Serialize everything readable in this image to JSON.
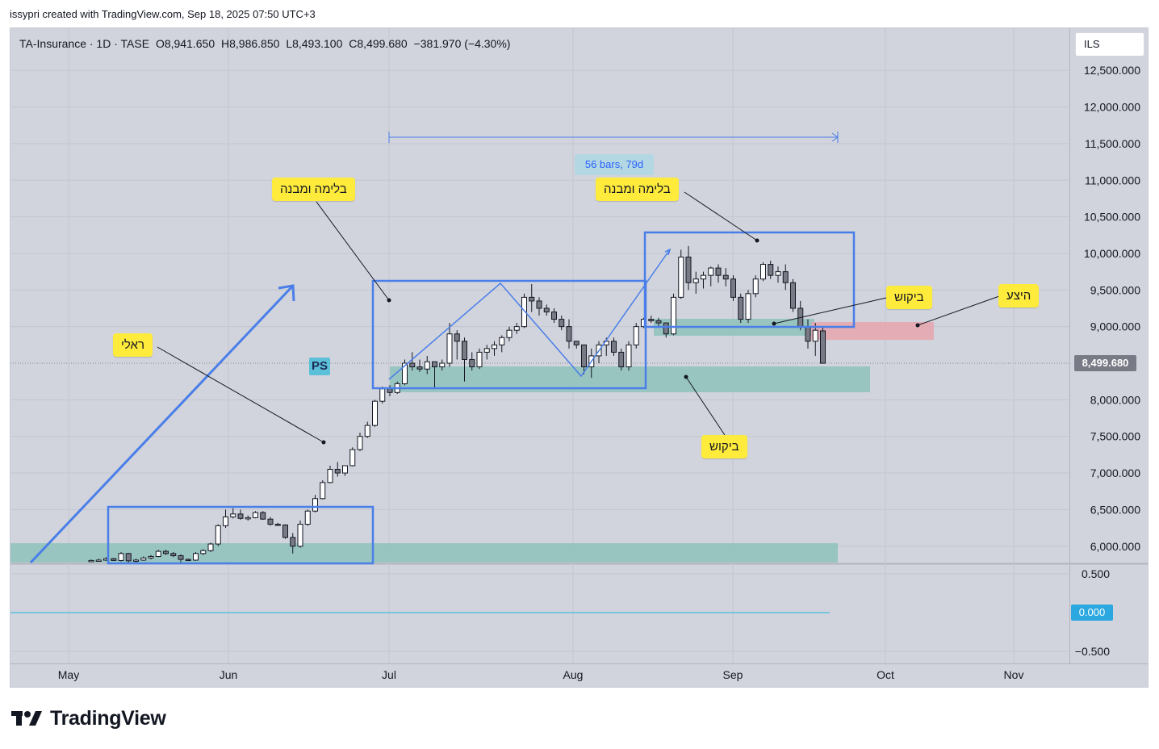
{
  "header": {
    "created_by": "issypri created with TradingView.com, Sep 18, 2025 07:50 UTC+3"
  },
  "legend": {
    "symbol": "TA-Insurance · 1D · TASE",
    "open": "O8,941.650",
    "high": "H8,986.850",
    "low": "L8,493.100",
    "close": "C8,499.680",
    "change": "−381.970 (−4.30%)"
  },
  "currency": "ILS",
  "last_price_tag": "8,499.680",
  "zero_tag": "0.000",
  "ps_badge": "PS",
  "range_label": "56 bars, 79d",
  "annotations": {
    "structure_left": "בלימה ומבנה",
    "structure_right": "בלימה ומבנה",
    "real": "ראלי",
    "demand_upper": "ביקוש",
    "demand_lower": "ביקוש",
    "supply": "היצע"
  },
  "logo_text": "TradingView",
  "colors": {
    "background": "#d1d4dc",
    "up_candle": "#ffffff",
    "down_candle": "#787b86",
    "box_blue": "#4a7ee8",
    "demand_zone": "#8fc2bc",
    "supply_zone": "#e8a4ae",
    "label_yellow": "#ffeb3b"
  },
  "chart_data": {
    "type": "candlestick",
    "price_axis": {
      "ticks": [
        "12,500.000",
        "12,000.000",
        "11,500.000",
        "11,000.000",
        "10,500.000",
        "10,000.000",
        "9,500.000",
        "9,000.000",
        "8,000.000",
        "7,500.000",
        "7,000.000",
        "6,500.000",
        "6,000.000"
      ],
      "tick_values": [
        12500,
        12000,
        11500,
        11000,
        10500,
        10000,
        9500,
        9000,
        8000,
        7500,
        7000,
        6500,
        6000
      ]
    },
    "indicator_axis": {
      "ticks": [
        "0.500",
        "−0.500"
      ],
      "tick_values": [
        0.5,
        -0.5
      ]
    },
    "x_axis": {
      "ticks": [
        "May",
        "Jun",
        "Jul",
        "Aug",
        "Sep",
        "Oct",
        "Nov"
      ]
    },
    "last_close": 8499.68,
    "candles_ohlc": [
      [
        5800,
        5820,
        5790,
        5805
      ],
      [
        5805,
        5830,
        5790,
        5810
      ],
      [
        5810,
        5850,
        5800,
        5830
      ],
      [
        5830,
        5840,
        5800,
        5805
      ],
      [
        5805,
        5920,
        5790,
        5900
      ],
      [
        5900,
        5910,
        5780,
        5800
      ],
      [
        5800,
        5830,
        5780,
        5810
      ],
      [
        5810,
        5860,
        5800,
        5840
      ],
      [
        5840,
        5880,
        5820,
        5860
      ],
      [
        5860,
        5950,
        5850,
        5930
      ],
      [
        5930,
        5950,
        5880,
        5900
      ],
      [
        5900,
        5920,
        5850,
        5870
      ],
      [
        5870,
        5890,
        5780,
        5820
      ],
      [
        5820,
        5830,
        5800,
        5810
      ],
      [
        5810,
        5920,
        5800,
        5900
      ],
      [
        5900,
        5960,
        5880,
        5940
      ],
      [
        5940,
        6050,
        5920,
        6030
      ],
      [
        6030,
        6300,
        6000,
        6280
      ],
      [
        6280,
        6500,
        6250,
        6400
      ],
      [
        6400,
        6520,
        6380,
        6440
      ],
      [
        6440,
        6500,
        6360,
        6380
      ],
      [
        6380,
        6420,
        6350,
        6390
      ],
      [
        6390,
        6480,
        6380,
        6460
      ],
      [
        6460,
        6480,
        6360,
        6370
      ],
      [
        6370,
        6400,
        6280,
        6300
      ],
      [
        6300,
        6320,
        6280,
        6290
      ],
      [
        6290,
        6300,
        6100,
        6120
      ],
      [
        6120,
        6180,
        5900,
        6000
      ],
      [
        6000,
        6350,
        5980,
        6300
      ],
      [
        6300,
        6500,
        6280,
        6480
      ],
      [
        6480,
        6700,
        6460,
        6650
      ],
      [
        6650,
        6900,
        6640,
        6870
      ],
      [
        6870,
        7100,
        6860,
        7050
      ],
      [
        7050,
        7150,
        6950,
        7000
      ],
      [
        7000,
        7050,
        6960,
        7100
      ],
      [
        7100,
        7350,
        7090,
        7320
      ],
      [
        7320,
        7550,
        7300,
        7500
      ],
      [
        7500,
        7700,
        7480,
        7650
      ],
      [
        7650,
        8000,
        7630,
        7980
      ],
      [
        7980,
        8180,
        7950,
        8150
      ],
      [
        8150,
        8200,
        8050,
        8100
      ],
      [
        8100,
        8250,
        8080,
        8220
      ],
      [
        8220,
        8550,
        8200,
        8500
      ],
      [
        8500,
        8650,
        8400,
        8450
      ],
      [
        8450,
        8550,
        8380,
        8420
      ],
      [
        8420,
        8600,
        8350,
        8520
      ],
      [
        8520,
        8500,
        8150,
        8450
      ],
      [
        8450,
        8550,
        8400,
        8500
      ],
      [
        8500,
        9050,
        8450,
        8900
      ],
      [
        8900,
        8950,
        8550,
        8800
      ],
      [
        8800,
        8850,
        8250,
        8550
      ],
      [
        8550,
        8650,
        8400,
        8450
      ],
      [
        8450,
        8700,
        8420,
        8650
      ],
      [
        8650,
        8750,
        8550,
        8700
      ],
      [
        8700,
        8800,
        8600,
        8750
      ],
      [
        8750,
        8880,
        8650,
        8850
      ],
      [
        8850,
        9000,
        8800,
        8950
      ],
      [
        8950,
        9050,
        8900,
        9000
      ],
      [
        9000,
        9450,
        8980,
        9400
      ],
      [
        9400,
        9580,
        9200,
        9350
      ],
      [
        9350,
        9400,
        9150,
        9250
      ],
      [
        9250,
        9300,
        9150,
        9200
      ],
      [
        9200,
        9250,
        9050,
        9100
      ],
      [
        9100,
        9150,
        8950,
        9000
      ],
      [
        9000,
        9100,
        8700,
        8800
      ],
      [
        8800,
        8800,
        8700,
        8750
      ],
      [
        8750,
        8750,
        8350,
        8450
      ],
      [
        8450,
        8700,
        8300,
        8600
      ],
      [
        8600,
        8800,
        8500,
        8750
      ],
      [
        8750,
        8850,
        8600,
        8800
      ],
      [
        8800,
        8850,
        8600,
        8650
      ],
      [
        8650,
        8700,
        8400,
        8450
      ],
      [
        8450,
        8800,
        8400,
        8750
      ],
      [
        8750,
        9050,
        8700,
        9000
      ],
      [
        9000,
        9120,
        8980,
        9100
      ],
      [
        9100,
        9150,
        9050,
        9080
      ],
      [
        9080,
        9120,
        9000,
        9050
      ],
      [
        9050,
        9000,
        8850,
        8900
      ],
      [
        8900,
        9450,
        8880,
        9400
      ],
      [
        9400,
        10050,
        9380,
        9950
      ],
      [
        9950,
        10100,
        9500,
        9600
      ],
      [
        9600,
        9750,
        9450,
        9650
      ],
      [
        9650,
        9750,
        9520,
        9700
      ],
      [
        9700,
        9820,
        9550,
        9800
      ],
      [
        9800,
        9850,
        9600,
        9700
      ],
      [
        9700,
        9800,
        9550,
        9650
      ],
      [
        9650,
        9700,
        9350,
        9400
      ],
      [
        9400,
        9450,
        9050,
        9100
      ],
      [
        9100,
        9500,
        9050,
        9450
      ],
      [
        9450,
        9700,
        9400,
        9650
      ],
      [
        9650,
        9880,
        9620,
        9850
      ],
      [
        9850,
        9900,
        9650,
        9700
      ],
      [
        9700,
        9820,
        9600,
        9750
      ],
      [
        9750,
        9850,
        9500,
        9600
      ],
      [
        9600,
        9650,
        9200,
        9250
      ],
      [
        9250,
        9350,
        8950,
        9000
      ],
      [
        9000,
        9100,
        8700,
        8800
      ],
      [
        8800,
        9050,
        8600,
        8950
      ],
      [
        8941.65,
        8986.85,
        8493.1,
        8499.68
      ]
    ]
  }
}
